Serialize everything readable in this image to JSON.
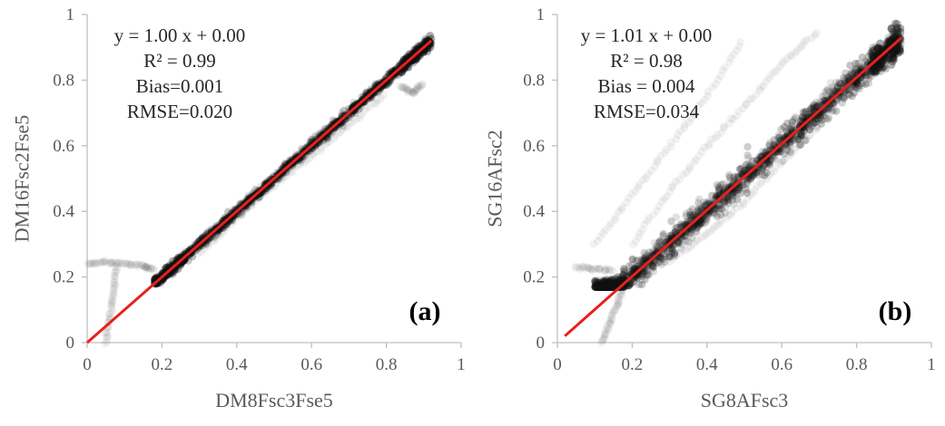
{
  "colors": {
    "points": "#111111",
    "fit_line": "#e8201c",
    "axis": "#bfbfbf",
    "tick_text": "#595959"
  },
  "chart_data": [
    {
      "type": "scatter",
      "panel_label": "(a)",
      "xlabel": "DM8Fsc3Fse5",
      "ylabel": "DM16Fsc2Fse5",
      "xlim": [
        0,
        1
      ],
      "ylim": [
        0,
        1
      ],
      "xticks": [
        "0",
        "0.2",
        "0.4",
        "0.6",
        "0.8",
        "1"
      ],
      "yticks": [
        "0",
        "0.2",
        "0.4",
        "0.6",
        "0.8",
        "1"
      ],
      "fit": {
        "slope": 1.0,
        "intercept": 0.0,
        "x_range": [
          0,
          0.92
        ]
      },
      "annotations": [
        "y = 1.00 x + 0.00",
        "R² = 0.99",
        "Bias=0.001",
        "RMSE=0.020"
      ],
      "dense_cloud": {
        "x_range": [
          0.18,
          0.92
        ],
        "y_min": 0.18,
        "spread": 0.012
      },
      "outlier_tracks": [
        {
          "x": [
            0.0,
            0.05,
            0.1,
            0.15,
            0.18
          ],
          "y": [
            0.24,
            0.245,
            0.24,
            0.235,
            0.22
          ]
        },
        {
          "x": [
            0.05,
            0.06,
            0.07,
            0.08
          ],
          "y": [
            0.0,
            0.08,
            0.16,
            0.24
          ]
        },
        {
          "x": [
            0.3,
            0.4,
            0.5,
            0.6,
            0.7,
            0.8
          ],
          "y": [
            0.27,
            0.38,
            0.48,
            0.57,
            0.66,
            0.76
          ]
        },
        {
          "x": [
            0.84,
            0.87,
            0.9
          ],
          "y": [
            0.78,
            0.76,
            0.79
          ]
        }
      ]
    },
    {
      "type": "scatter",
      "panel_label": "(b)",
      "xlabel": "SG8AFsc3",
      "ylabel": "SG16AFsc2",
      "xlim": [
        0,
        1
      ],
      "ylim": [
        0,
        1
      ],
      "xticks": [
        "0",
        "0.2",
        "0.4",
        "0.6",
        "0.8",
        "1"
      ],
      "yticks": [
        "0",
        "0.2",
        "0.4",
        "0.6",
        "0.8",
        "1"
      ],
      "fit": {
        "slope": 1.01,
        "intercept": 0.0,
        "x_range": [
          0.02,
          0.92
        ]
      },
      "annotations": [
        "y = 1.01 x + 0.00",
        "R² = 0.98",
        "Bias = 0.004",
        "RMSE=0.034"
      ],
      "dense_cloud": {
        "x_range": [
          0.1,
          0.92
        ],
        "y_min": 0.17,
        "spread": 0.035
      },
      "outlier_tracks": [
        {
          "x": [
            0.05,
            0.1,
            0.15
          ],
          "y": [
            0.23,
            0.225,
            0.22
          ]
        },
        {
          "x": [
            0.1,
            0.2,
            0.3,
            0.4,
            0.5
          ],
          "y": [
            0.3,
            0.45,
            0.6,
            0.75,
            0.93
          ]
        },
        {
          "x": [
            0.2,
            0.3,
            0.4,
            0.5,
            0.6,
            0.7
          ],
          "y": [
            0.3,
            0.46,
            0.6,
            0.72,
            0.85,
            0.95
          ]
        },
        {
          "x": [
            0.12,
            0.14,
            0.16,
            0.18
          ],
          "y": [
            0.0,
            0.06,
            0.12,
            0.18
          ]
        },
        {
          "x": [
            0.3,
            0.4,
            0.5,
            0.6,
            0.7
          ],
          "y": [
            0.25,
            0.33,
            0.43,
            0.55,
            0.66
          ]
        }
      ]
    }
  ]
}
